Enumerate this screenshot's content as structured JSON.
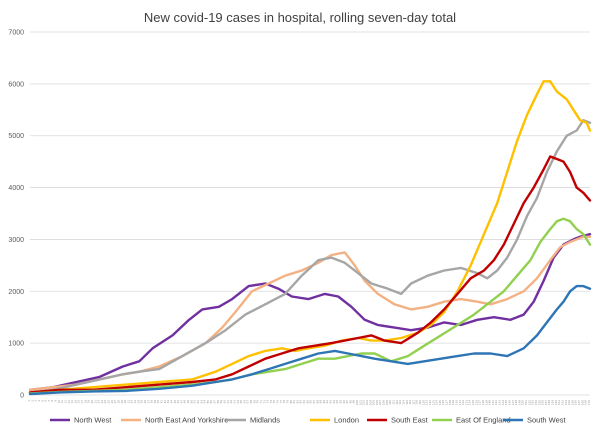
{
  "chart_data": {
    "type": "line",
    "title": "New covid-19 cases in hospital, rolling seven-day total",
    "xlabel": "",
    "ylabel": "",
    "ylim": [
      0,
      7000
    ],
    "yticks": [
      "0",
      "1000",
      "2000",
      "3000",
      "4000",
      "5000",
      "6000",
      "7000"
    ],
    "grid": true,
    "legend_position": "bottom",
    "x": [
      1,
      2,
      3,
      4,
      5,
      6,
      7,
      8,
      9,
      10,
      11,
      12,
      13,
      14,
      15,
      16,
      17,
      18,
      19,
      20,
      21,
      22,
      23,
      24,
      25,
      26,
      27,
      28,
      29,
      30,
      31,
      32,
      33,
      34,
      35,
      36,
      37,
      38,
      39,
      40,
      41,
      42,
      43,
      44,
      45,
      46,
      47,
      48,
      49,
      50,
      51,
      52,
      53,
      54,
      55,
      56,
      57,
      58,
      59,
      60,
      61,
      62,
      63,
      64,
      65,
      66,
      67,
      68,
      69,
      70,
      71,
      72,
      73,
      74,
      75,
      76,
      77,
      78,
      79,
      80,
      81,
      82,
      83,
      84,
      85,
      86,
      87,
      88,
      89,
      90,
      91,
      92,
      93,
      94,
      95,
      96,
      97,
      98,
      99,
      100,
      101,
      102,
      103,
      104,
      105,
      106,
      107,
      108,
      109,
      110,
      111,
      112,
      113,
      114,
      115,
      116,
      117,
      118,
      119,
      120,
      121,
      122,
      123,
      124,
      125,
      126,
      127,
      128,
      129,
      130,
      131,
      132,
      133,
      134,
      135,
      136,
      137,
      138,
      139,
      140,
      141,
      142,
      143,
      144,
      145,
      146,
      147,
      148,
      149,
      150,
      151,
      152,
      153,
      154,
      155,
      156,
      157,
      158,
      159,
      160,
      161,
      162,
      163,
      164,
      165,
      166,
      167,
      168,
      169,
      170
    ],
    "series": [
      {
        "name": "North West",
        "color": "#7030a0",
        "points": [
          [
            1,
            100
          ],
          [
            8,
            150
          ],
          [
            15,
            250
          ],
          [
            22,
            350
          ],
          [
            29,
            550
          ],
          [
            34,
            650
          ],
          [
            38,
            900
          ],
          [
            44,
            1150
          ],
          [
            49,
            1450
          ],
          [
            53,
            1650
          ],
          [
            58,
            1700
          ],
          [
            62,
            1850
          ],
          [
            67,
            2100
          ],
          [
            72,
            2150
          ],
          [
            76,
            2050
          ],
          [
            80,
            1900
          ],
          [
            85,
            1850
          ],
          [
            90,
            1950
          ],
          [
            94,
            1900
          ],
          [
            98,
            1700
          ],
          [
            102,
            1450
          ],
          [
            106,
            1350
          ],
          [
            111,
            1300
          ],
          [
            116,
            1250
          ],
          [
            121,
            1300
          ],
          [
            126,
            1400
          ],
          [
            131,
            1350
          ],
          [
            136,
            1450
          ],
          [
            141,
            1500
          ],
          [
            146,
            1450
          ],
          [
            150,
            1550
          ],
          [
            153,
            1800
          ],
          [
            156,
            2200
          ],
          [
            159,
            2650
          ],
          [
            162,
            2900
          ],
          [
            165,
            3000
          ],
          [
            167,
            3050
          ],
          [
            170,
            3100
          ]
        ]
      },
      {
        "name": "North East And Yorkshire",
        "color": "#f4b183",
        "points": [
          [
            1,
            100
          ],
          [
            8,
            150
          ],
          [
            15,
            200
          ],
          [
            22,
            300
          ],
          [
            29,
            400
          ],
          [
            34,
            450
          ],
          [
            40,
            550
          ],
          [
            47,
            750
          ],
          [
            54,
            1000
          ],
          [
            59,
            1300
          ],
          [
            63,
            1600
          ],
          [
            68,
            2000
          ],
          [
            73,
            2150
          ],
          [
            78,
            2300
          ],
          [
            83,
            2400
          ],
          [
            88,
            2550
          ],
          [
            92,
            2700
          ],
          [
            96,
            2750
          ],
          [
            99,
            2500
          ],
          [
            102,
            2200
          ],
          [
            106,
            1950
          ],
          [
            111,
            1750
          ],
          [
            116,
            1650
          ],
          [
            121,
            1700
          ],
          [
            126,
            1800
          ],
          [
            131,
            1850
          ],
          [
            136,
            1800
          ],
          [
            140,
            1750
          ],
          [
            145,
            1850
          ],
          [
            150,
            2000
          ],
          [
            154,
            2250
          ],
          [
            158,
            2600
          ],
          [
            161,
            2850
          ],
          [
            164,
            2950
          ],
          [
            166,
            3000
          ],
          [
            168,
            3050
          ],
          [
            170,
            3050
          ]
        ]
      },
      {
        "name": "Midlands",
        "color": "#a6a6a6",
        "points": [
          [
            1,
            50
          ],
          [
            8,
            100
          ],
          [
            15,
            200
          ],
          [
            22,
            300
          ],
          [
            29,
            400
          ],
          [
            34,
            450
          ],
          [
            40,
            500
          ],
          [
            47,
            750
          ],
          [
            54,
            1000
          ],
          [
            60,
            1250
          ],
          [
            66,
            1550
          ],
          [
            72,
            1750
          ],
          [
            78,
            1950
          ],
          [
            83,
            2300
          ],
          [
            88,
            2600
          ],
          [
            92,
            2650
          ],
          [
            96,
            2550
          ],
          [
            100,
            2350
          ],
          [
            104,
            2150
          ],
          [
            109,
            2050
          ],
          [
            113,
            1950
          ],
          [
            116,
            2150
          ],
          [
            121,
            2300
          ],
          [
            126,
            2400
          ],
          [
            131,
            2450
          ],
          [
            136,
            2350
          ],
          [
            139,
            2250
          ],
          [
            142,
            2400
          ],
          [
            145,
            2650
          ],
          [
            148,
            3000
          ],
          [
            151,
            3450
          ],
          [
            154,
            3800
          ],
          [
            157,
            4300
          ],
          [
            160,
            4700
          ],
          [
            163,
            5000
          ],
          [
            166,
            5100
          ],
          [
            168,
            5300
          ],
          [
            170,
            5250
          ]
        ]
      },
      {
        "name": "London",
        "color": "#ffc000",
        "points": [
          [
            1,
            50
          ],
          [
            10,
            100
          ],
          [
            20,
            150
          ],
          [
            30,
            200
          ],
          [
            40,
            250
          ],
          [
            50,
            300
          ],
          [
            57,
            450
          ],
          [
            62,
            600
          ],
          [
            67,
            750
          ],
          [
            72,
            850
          ],
          [
            77,
            900
          ],
          [
            81,
            850
          ],
          [
            85,
            900
          ],
          [
            90,
            950
          ],
          [
            95,
            1050
          ],
          [
            100,
            1100
          ],
          [
            104,
            1050
          ],
          [
            108,
            1050
          ],
          [
            113,
            1100
          ],
          [
            118,
            1200
          ],
          [
            122,
            1350
          ],
          [
            126,
            1600
          ],
          [
            130,
            2000
          ],
          [
            134,
            2500
          ],
          [
            138,
            3100
          ],
          [
            142,
            3700
          ],
          [
            145,
            4300
          ],
          [
            148,
            4900
          ],
          [
            151,
            5400
          ],
          [
            154,
            5800
          ],
          [
            156,
            6050
          ],
          [
            158,
            6050
          ],
          [
            160,
            5850
          ],
          [
            163,
            5700
          ],
          [
            165,
            5500
          ],
          [
            167,
            5300
          ],
          [
            169,
            5250
          ],
          [
            170,
            5100
          ]
        ]
      },
      {
        "name": "South East",
        "color": "#c00000",
        "points": [
          [
            1,
            50
          ],
          [
            10,
            100
          ],
          [
            20,
            100
          ],
          [
            30,
            150
          ],
          [
            40,
            200
          ],
          [
            50,
            250
          ],
          [
            57,
            300
          ],
          [
            62,
            400
          ],
          [
            67,
            550
          ],
          [
            72,
            700
          ],
          [
            77,
            800
          ],
          [
            82,
            900
          ],
          [
            87,
            950
          ],
          [
            92,
            1000
          ],
          [
            96,
            1050
          ],
          [
            100,
            1100
          ],
          [
            104,
            1150
          ],
          [
            108,
            1050
          ],
          [
            113,
            1000
          ],
          [
            118,
            1200
          ],
          [
            122,
            1400
          ],
          [
            126,
            1650
          ],
          [
            130,
            1950
          ],
          [
            134,
            2250
          ],
          [
            138,
            2400
          ],
          [
            141,
            2600
          ],
          [
            144,
            2900
          ],
          [
            147,
            3300
          ],
          [
            150,
            3700
          ],
          [
            153,
            4000
          ],
          [
            156,
            4350
          ],
          [
            158,
            4600
          ],
          [
            160,
            4550
          ],
          [
            162,
            4500
          ],
          [
            164,
            4300
          ],
          [
            166,
            4000
          ],
          [
            168,
            3900
          ],
          [
            170,
            3750
          ]
        ]
      },
      {
        "name": "East Of England",
        "color": "#92d050",
        "points": [
          [
            1,
            30
          ],
          [
            10,
            60
          ],
          [
            20,
            80
          ],
          [
            30,
            100
          ],
          [
            40,
            150
          ],
          [
            50,
            200
          ],
          [
            57,
            250
          ],
          [
            62,
            300
          ],
          [
            68,
            400
          ],
          [
            73,
            450
          ],
          [
            78,
            500
          ],
          [
            83,
            600
          ],
          [
            88,
            700
          ],
          [
            93,
            700
          ],
          [
            97,
            750
          ],
          [
            101,
            800
          ],
          [
            105,
            800
          ],
          [
            110,
            650
          ],
          [
            115,
            750
          ],
          [
            120,
            950
          ],
          [
            125,
            1150
          ],
          [
            130,
            1350
          ],
          [
            135,
            1550
          ],
          [
            140,
            1800
          ],
          [
            144,
            2000
          ],
          [
            148,
            2300
          ],
          [
            152,
            2600
          ],
          [
            155,
            2950
          ],
          [
            158,
            3200
          ],
          [
            160,
            3350
          ],
          [
            162,
            3400
          ],
          [
            164,
            3350
          ],
          [
            166,
            3200
          ],
          [
            168,
            3100
          ],
          [
            170,
            2900
          ]
        ]
      },
      {
        "name": "South West",
        "color": "#2e75b6",
        "points": [
          [
            1,
            20
          ],
          [
            10,
            50
          ],
          [
            20,
            70
          ],
          [
            30,
            80
          ],
          [
            40,
            120
          ],
          [
            50,
            180
          ],
          [
            57,
            250
          ],
          [
            62,
            300
          ],
          [
            68,
            400
          ],
          [
            73,
            500
          ],
          [
            78,
            600
          ],
          [
            83,
            700
          ],
          [
            88,
            800
          ],
          [
            93,
            850
          ],
          [
            97,
            800
          ],
          [
            101,
            750
          ],
          [
            105,
            700
          ],
          [
            110,
            650
          ],
          [
            115,
            600
          ],
          [
            120,
            650
          ],
          [
            125,
            700
          ],
          [
            130,
            750
          ],
          [
            135,
            800
          ],
          [
            140,
            800
          ],
          [
            145,
            750
          ],
          [
            150,
            900
          ],
          [
            154,
            1150
          ],
          [
            157,
            1400
          ],
          [
            160,
            1650
          ],
          [
            162,
            1800
          ],
          [
            164,
            2000
          ],
          [
            166,
            2100
          ],
          [
            168,
            2100
          ],
          [
            170,
            2050
          ]
        ]
      }
    ]
  }
}
